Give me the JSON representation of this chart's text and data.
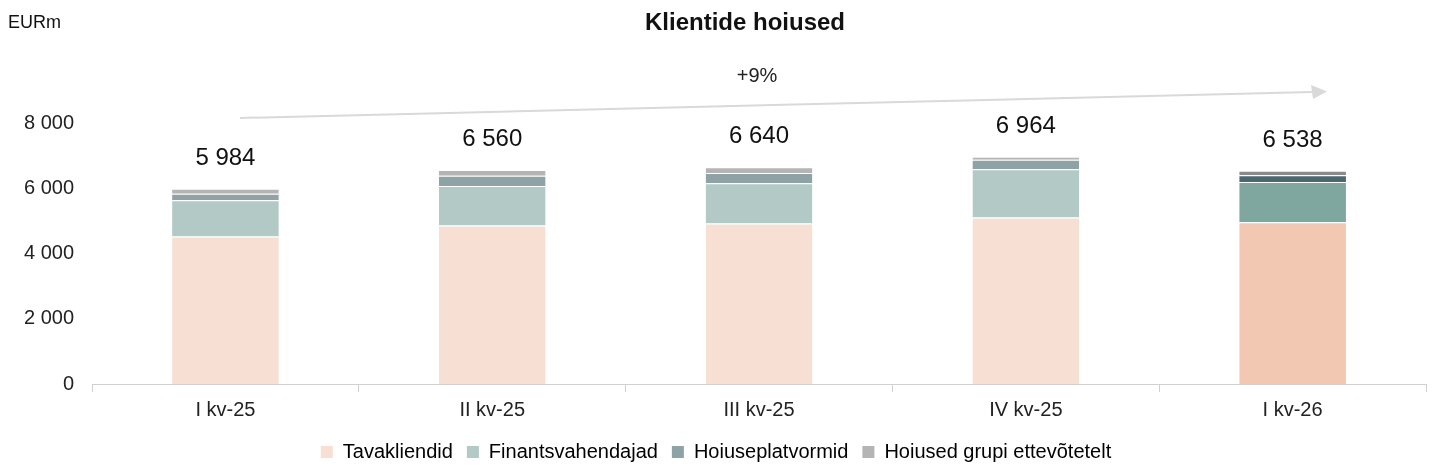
{
  "chart_data": {
    "type": "bar",
    "title": "Klientide hoiused",
    "ylabel": "EURm",
    "categories": [
      "I kv-25",
      "II kv-25",
      "III kv-25",
      "IV kv-25",
      "I kv-26"
    ],
    "stacked": true,
    "series": [
      {
        "name": "Tavakliendid",
        "color": "#f8dfd3",
        "colors": [
          "#f8dfd3",
          "#f8dfd3",
          "#f8dfd3",
          "#f8dfd3",
          "#f3c8b2"
        ],
        "values": [
          4524,
          4860,
          4920,
          5104,
          4958
        ]
      },
      {
        "name": "Finantsvahendajad",
        "color": "#b3c9c5",
        "colors": [
          "#b3c9c5",
          "#b3c9c5",
          "#b3c9c5",
          "#b3c9c5",
          "#80a6a0"
        ],
        "values": [
          1110,
          1210,
          1230,
          1480,
          1230
        ]
      },
      {
        "name": "Hoiuseplatvormid",
        "color": "#8fa3a7",
        "colors": [
          "#8fa3a7",
          "#8fa3a7",
          "#8fa3a7",
          "#8fa3a7",
          "#4b6870"
        ],
        "values": [
          200,
          310,
          320,
          290,
          210
        ]
      },
      {
        "name": "Hoiused grupi ettevõtetelt",
        "color": "#b4b4b4",
        "colors": [
          "#b4b4b4",
          "#b4b4b4",
          "#b4b4b4",
          "#b4b4b4",
          "#8a8a8a"
        ],
        "values": [
          150,
          180,
          170,
          90,
          140
        ]
      }
    ],
    "totals": [
      "5 984",
      "6 560",
      "6 640",
      "6 964",
      "6 538"
    ],
    "annotations": [
      "+9%"
    ],
    "ylim": [
      0,
      8000
    ],
    "yticks": [
      {
        "value": 0,
        "label": "0"
      },
      {
        "value": 2000,
        "label": "2 000"
      },
      {
        "value": 4000,
        "label": "4 000"
      },
      {
        "value": 6000,
        "label": "6 000"
      },
      {
        "value": 8000,
        "label": "8 000"
      }
    ],
    "grid": false,
    "legend": "bottom"
  }
}
